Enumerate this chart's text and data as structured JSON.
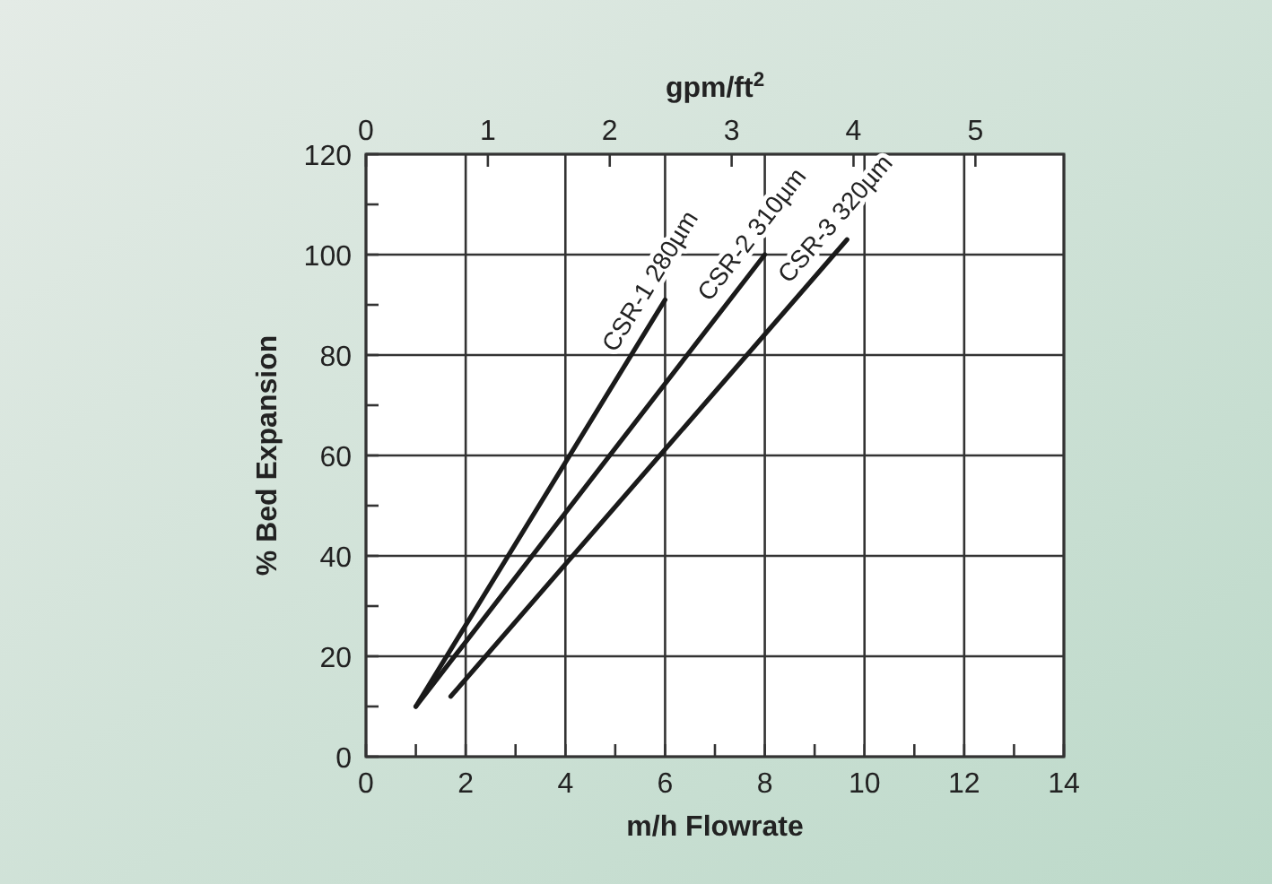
{
  "chart_data": {
    "type": "line",
    "xlabel": "m/h Flowrate",
    "ylabel": "% Bed Expansion",
    "x2label": "gpm/ft$^{2}$",
    "xlim": [
      0,
      14
    ],
    "xticks": [
      0,
      {
        "value": 1,
        "label": null
      },
      2,
      {
        "value": 3,
        "label": null
      },
      4,
      {
        "value": 5,
        "label": null
      },
      6,
      {
        "value": 7,
        "label": null
      },
      8,
      {
        "value": 9,
        "label": null
      },
      10,
      {
        "value": 11,
        "label": null
      },
      12,
      {
        "value": 13,
        "label": null
      },
      14
    ],
    "ylim": [
      0,
      120
    ],
    "yticks": [
      0,
      {
        "value": 10,
        "label": null
      },
      20,
      {
        "value": 30,
        "label": null
      },
      40,
      {
        "value": 50,
        "label": null
      },
      60,
      {
        "value": 70,
        "label": null
      },
      80,
      {
        "value": 90,
        "label": null
      },
      100,
      {
        "value": 110,
        "label": null
      },
      120
    ],
    "x2lim": [
      0,
      5.726
    ],
    "x2ticks": [
      0,
      1,
      2,
      3,
      4,
      5
    ],
    "grid": true,
    "line_style": "solid",
    "series": [
      {
        "name": "CSR-1 280µm",
        "color": "#1a1a1a",
        "x": [
          1,
          6
        ],
        "values": [
          10,
          91
        ]
      },
      {
        "name": "CSR-2 310µm",
        "color": "#1a1a1a",
        "x": [
          1,
          8
        ],
        "values": [
          10,
          100
        ]
      },
      {
        "name": "CSR-3 320µm",
        "color": "#1a1a1a",
        "x": [
          1.7,
          9.65
        ],
        "values": [
          12,
          103
        ]
      }
    ]
  }
}
